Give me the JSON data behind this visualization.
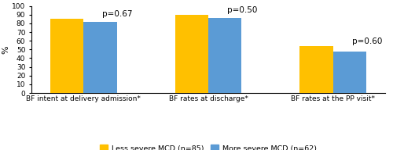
{
  "groups": [
    "BF intent at delivery admission*",
    "BF rates at discharge*",
    "BF rates at the PP visit*"
  ],
  "less_severe": [
    85,
    90,
    54
  ],
  "more_severe": [
    82,
    86,
    48
  ],
  "p_values": [
    "p=0.67",
    "p=0.50",
    "p=0.60"
  ],
  "color_yellow": "#FFC000",
  "color_blue": "#5B9BD5",
  "ylabel": "%",
  "ylim": [
    0,
    100
  ],
  "yticks": [
    0,
    10,
    20,
    30,
    40,
    50,
    60,
    70,
    80,
    90,
    100
  ],
  "legend_yellow": "Less severe MCD (n=85)",
  "legend_blue": "More severe MCD (n=62)",
  "bar_width": 0.32,
  "group_positions": [
    0.5,
    1.7,
    2.9
  ],
  "xlim": [
    0.0,
    3.4
  ],
  "p_fontsize": 7.5,
  "tick_fontsize": 6.5,
  "xlabel_fontsize": 6.5,
  "ylabel_fontsize": 8,
  "legend_fontsize": 6.8
}
